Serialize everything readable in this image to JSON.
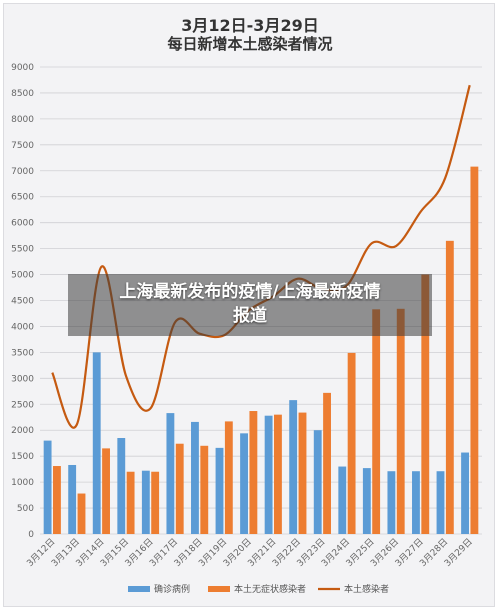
{
  "chart_data": {
    "type": "bar",
    "title": "3月12日-3月29日",
    "subtitle": "每日新增本土感染者情况",
    "categories": [
      "3月12日",
      "3月13日",
      "3月14日",
      "3月15日",
      "3月16日",
      "3月17日",
      "3月18日",
      "3月19日",
      "3月20日",
      "3月21日",
      "3月22日",
      "3月23日",
      "3月24日",
      "3月25日",
      "3月26日",
      "3月27日",
      "3月28日",
      "3月29日"
    ],
    "ylim": [
      0,
      9000
    ],
    "yticks": [
      0,
      500,
      1000,
      1500,
      2000,
      2500,
      3000,
      3500,
      4000,
      4500,
      5000,
      5500,
      6000,
      6500,
      7000,
      7500,
      8000,
      8500,
      9000
    ],
    "grid": true,
    "legend_position": "bottom",
    "series": [
      {
        "name": "确诊病例",
        "type": "bar",
        "color": "#5b9bd5",
        "values": [
          1800,
          1330,
          3500,
          1850,
          1220,
          2330,
          2160,
          1660,
          1940,
          2280,
          2580,
          2000,
          1300,
          1270,
          1210,
          1210,
          1210,
          1570
        ]
      },
      {
        "name": "本土无症状感染者",
        "type": "bar",
        "color": "#ed7d31",
        "values": [
          1310,
          780,
          1650,
          1200,
          1200,
          1740,
          1700,
          2170,
          2370,
          2300,
          2340,
          2720,
          3490,
          4330,
          4340,
          5000,
          5650,
          7080
        ]
      },
      {
        "name": "本土感染者",
        "type": "line",
        "color": "#c55a11",
        "values": [
          3110,
          2110,
          5150,
          3050,
          2420,
          4080,
          3860,
          3830,
          4310,
          4580,
          4920,
          4720,
          4790,
          5600,
          5550,
          6210,
          6860,
          8650
        ]
      }
    ]
  },
  "overlay": {
    "line1": "上海最新发布的疫情/上海最新疫情",
    "line2": "报道"
  }
}
